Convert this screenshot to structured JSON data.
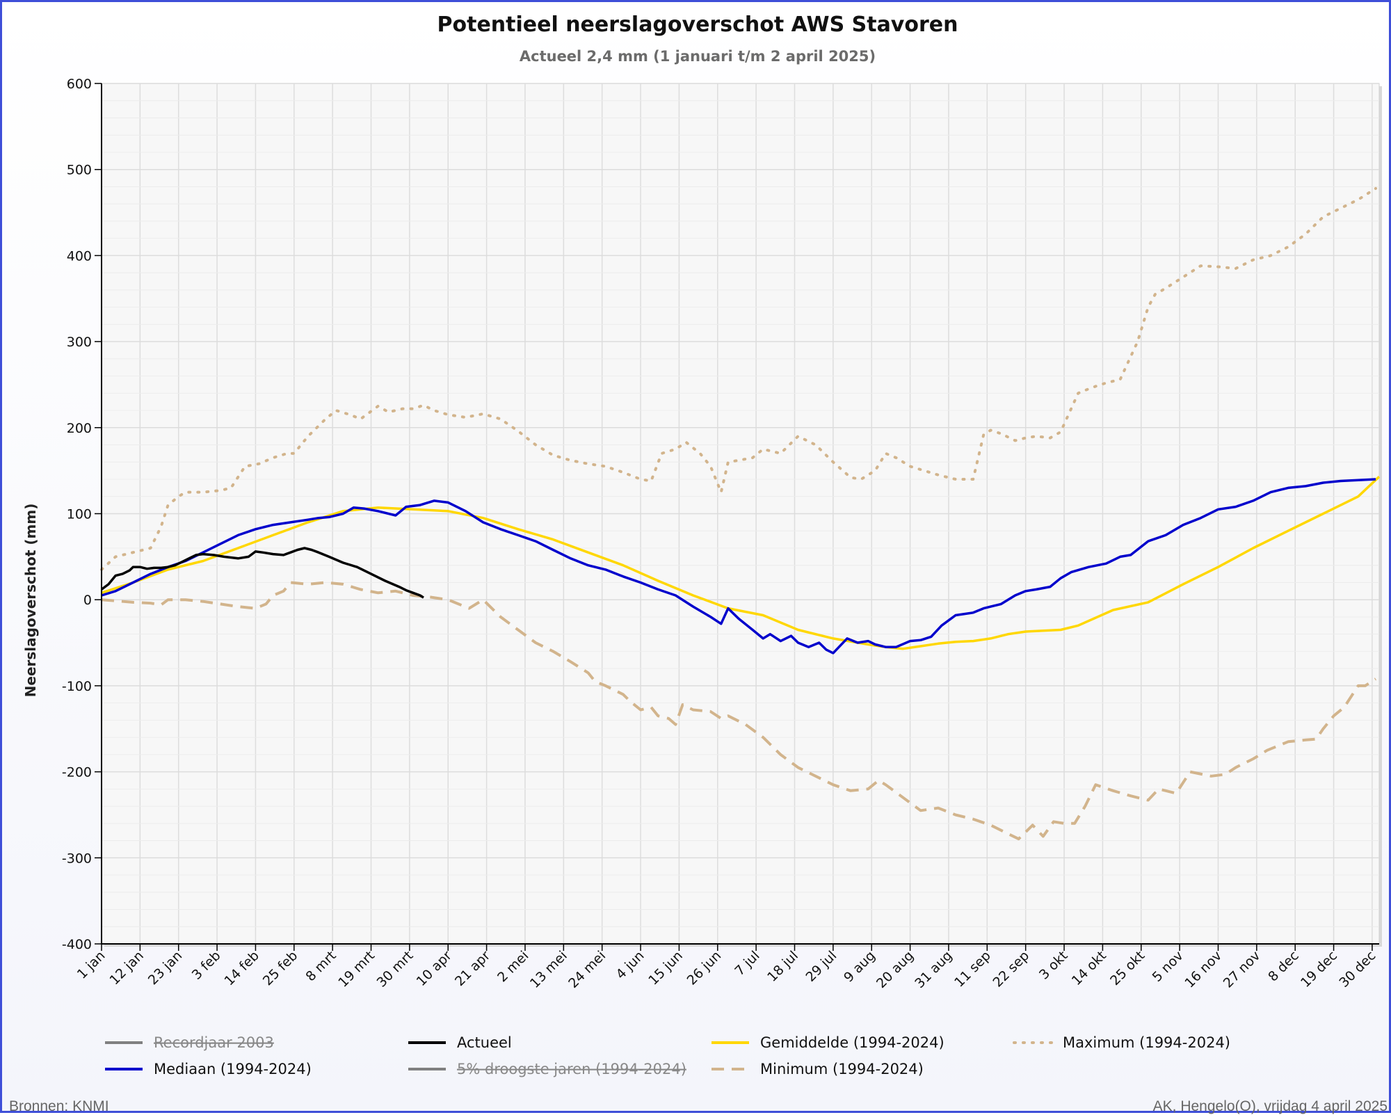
{
  "title": "Potentieel neerslagoverschot AWS Stavoren",
  "subtitle": "Actueel 2,4 mm (1 januari t/m 2 april 2025)",
  "footer_left": "Bronnen: KNMI",
  "footer_right": "AK, Hengelo(O), vrijdag 4 april 2025",
  "chart_data": {
    "type": "line",
    "ylabel": "Neerslagoverschot (mm)",
    "xlabel": "",
    "ylim": [
      -400,
      600
    ],
    "yticks": [
      600,
      500,
      400,
      300,
      200,
      100,
      0,
      -100,
      -200,
      -300,
      -400
    ],
    "x_unit": "day of year",
    "xlim": [
      1,
      366
    ],
    "grid": true,
    "legend_position": "bottom",
    "x_tick_labels": [
      {
        "day": 1,
        "label": "1 jan"
      },
      {
        "day": 12,
        "label": "12 jan"
      },
      {
        "day": 23,
        "label": "23 jan"
      },
      {
        "day": 34,
        "label": "3 feb"
      },
      {
        "day": 45,
        "label": "14 feb"
      },
      {
        "day": 56,
        "label": "25 feb"
      },
      {
        "day": 67,
        "label": "8 mrt"
      },
      {
        "day": 78,
        "label": "19 mrt"
      },
      {
        "day": 89,
        "label": "30 mrt"
      },
      {
        "day": 100,
        "label": "10 apr"
      },
      {
        "day": 111,
        "label": "21 apr"
      },
      {
        "day": 122,
        "label": "2 mei"
      },
      {
        "day": 133,
        "label": "13 mei"
      },
      {
        "day": 144,
        "label": "24 mei"
      },
      {
        "day": 155,
        "label": "4 jun"
      },
      {
        "day": 166,
        "label": "15 jun"
      },
      {
        "day": 177,
        "label": "26 jun"
      },
      {
        "day": 188,
        "label": "7 jul"
      },
      {
        "day": 199,
        "label": "18 jul"
      },
      {
        "day": 210,
        "label": "29 jul"
      },
      {
        "day": 221,
        "label": "9 aug"
      },
      {
        "day": 232,
        "label": "20 aug"
      },
      {
        "day": 243,
        "label": "31 aug"
      },
      {
        "day": 254,
        "label": "11 sep"
      },
      {
        "day": 265,
        "label": "22 sep"
      },
      {
        "day": 276,
        "label": "3 okt"
      },
      {
        "day": 287,
        "label": "14 okt"
      },
      {
        "day": 298,
        "label": "25 okt"
      },
      {
        "day": 309,
        "label": "5 nov"
      },
      {
        "day": 320,
        "label": "16 nov"
      },
      {
        "day": 331,
        "label": "27 nov"
      },
      {
        "day": 342,
        "label": "8 dec"
      },
      {
        "day": 353,
        "label": "19 dec"
      },
      {
        "day": 364,
        "label": "30 dec"
      }
    ],
    "legend": [
      {
        "name": "Recordjaar 2003",
        "color": "#808080",
        "style": "solid",
        "disabled": true
      },
      {
        "name": "Actueel",
        "color": "#000000",
        "style": "solid",
        "disabled": false
      },
      {
        "name": "Gemiddelde (1994-2024)",
        "color": "#ffd700",
        "style": "solid",
        "disabled": false
      },
      {
        "name": "Maximum (1994-2024)",
        "color": "#d2b48c",
        "style": "dotted",
        "disabled": false
      },
      {
        "name": "Mediaan (1994-2024)",
        "color": "#0000cc",
        "style": "solid",
        "disabled": false
      },
      {
        "name": "5% droogste jaren (1994-2024)",
        "color": "#808080",
        "style": "solid",
        "disabled": true
      },
      {
        "name": "Minimum (1994-2024)",
        "color": "#d2b48c",
        "style": "dashed",
        "disabled": false
      }
    ],
    "series": [
      {
        "name": "Maximum (1994-2024)",
        "color": "#d2b48c",
        "style": "dotted",
        "x": [
          1,
          5,
          10,
          15,
          18,
          20,
          23,
          25,
          30,
          35,
          38,
          42,
          46,
          50,
          54,
          56,
          60,
          62,
          65,
          68,
          72,
          75,
          80,
          83,
          87,
          90,
          93,
          96,
          100,
          105,
          110,
          115,
          120,
          125,
          130,
          135,
          140,
          145,
          150,
          155,
          158,
          161,
          165,
          168,
          172,
          175,
          178,
          180,
          183,
          187,
          190,
          195,
          200,
          205,
          210,
          215,
          218,
          222,
          225,
          228,
          232,
          236,
          240,
          245,
          250,
          253,
          255,
          258,
          262,
          265,
          268,
          272,
          275,
          280,
          283,
          285,
          288,
          292,
          297,
          300,
          302,
          305,
          310,
          315,
          320,
          325,
          330,
          335,
          340,
          345,
          350,
          355,
          360,
          365
        ],
        "y": [
          35,
          50,
          55,
          60,
          85,
          110,
          120,
          125,
          125,
          127,
          130,
          155,
          158,
          165,
          170,
          170,
          190,
          198,
          210,
          220,
          215,
          210,
          225,
          218,
          222,
          222,
          226,
          220,
          215,
          212,
          216,
          210,
          196,
          180,
          168,
          162,
          158,
          155,
          148,
          140,
          138,
          170,
          175,
          183,
          170,
          155,
          125,
          160,
          162,
          165,
          175,
          170,
          190,
          180,
          160,
          142,
          140,
          150,
          170,
          165,
          155,
          150,
          145,
          140,
          140,
          192,
          197,
          193,
          185,
          188,
          190,
          188,
          195,
          240,
          245,
          248,
          252,
          256,
          300,
          340,
          355,
          362,
          375,
          388,
          387,
          385,
          395,
          400,
          410,
          425,
          445,
          455,
          465,
          478
        ]
      },
      {
        "name": "Minimum (1994-2024)",
        "color": "#d2b48c",
        "style": "dashed",
        "x": [
          1,
          10,
          15,
          18,
          20,
          25,
          30,
          35,
          40,
          45,
          48,
          50,
          53,
          55,
          60,
          65,
          70,
          75,
          80,
          85,
          90,
          95,
          100,
          103,
          106,
          110,
          115,
          120,
          125,
          130,
          135,
          140,
          142,
          145,
          150,
          152,
          155,
          158,
          160,
          163,
          165,
          167,
          170,
          175,
          178,
          180,
          185,
          190,
          195,
          200,
          205,
          210,
          215,
          220,
          223,
          225,
          230,
          235,
          240,
          245,
          250,
          255,
          260,
          263,
          265,
          267,
          270,
          273,
          276,
          279,
          282,
          285,
          290,
          295,
          300,
          303,
          308,
          312,
          318,
          322,
          325,
          330,
          334,
          340,
          345,
          348,
          350,
          353,
          356,
          360,
          362,
          365
        ],
        "y": [
          0,
          -3,
          -4,
          -6,
          0,
          0,
          -2,
          -5,
          -8,
          -10,
          -5,
          5,
          10,
          20,
          18,
          20,
          18,
          12,
          8,
          10,
          5,
          3,
          0,
          -5,
          -10,
          0,
          -20,
          -35,
          -50,
          -60,
          -72,
          -85,
          -95,
          -100,
          -110,
          -118,
          -128,
          -125,
          -135,
          -138,
          -145,
          -122,
          -128,
          -130,
          -138,
          -135,
          -145,
          -160,
          -180,
          -195,
          -205,
          -215,
          -222,
          -220,
          -210,
          -215,
          -230,
          -245,
          -242,
          -250,
          -255,
          -262,
          -272,
          -278,
          -270,
          -262,
          -275,
          -258,
          -260,
          -260,
          -240,
          -215,
          -222,
          -228,
          -233,
          -220,
          -225,
          -200,
          -205,
          -203,
          -195,
          -185,
          -175,
          -165,
          -163,
          -162,
          -150,
          -135,
          -125,
          -100,
          -100,
          -92
        ]
      },
      {
        "name": "Gemiddelde (1994-2024)",
        "color": "#ffd700",
        "style": "solid",
        "x": [
          1,
          10,
          20,
          30,
          40,
          50,
          60,
          70,
          80,
          90,
          100,
          110,
          120,
          130,
          140,
          150,
          160,
          170,
          180,
          190,
          200,
          210,
          220,
          225,
          230,
          235,
          240,
          245,
          250,
          255,
          260,
          265,
          270,
          275,
          280,
          290,
          300,
          310,
          320,
          330,
          340,
          350,
          360,
          366
        ],
        "y": [
          8,
          20,
          35,
          45,
          60,
          75,
          90,
          103,
          107,
          105,
          103,
          95,
          82,
          70,
          55,
          40,
          22,
          5,
          -10,
          -18,
          -35,
          -45,
          -52,
          -55,
          -57,
          -54,
          -51,
          -49,
          -48,
          -45,
          -40,
          -37,
          -36,
          -35,
          -30,
          -12,
          -3,
          18,
          38,
          60,
          80,
          100,
          120,
          143
        ]
      },
      {
        "name": "Mediaan (1994-2024)",
        "color": "#0000cc",
        "style": "solid",
        "x": [
          1,
          5,
          10,
          15,
          20,
          25,
          30,
          35,
          40,
          45,
          50,
          55,
          60,
          63,
          66,
          70,
          73,
          76,
          80,
          85,
          88,
          92,
          96,
          100,
          105,
          110,
          115,
          120,
          125,
          130,
          135,
          140,
          145,
          150,
          155,
          160,
          165,
          170,
          175,
          178,
          180,
          183,
          187,
          190,
          192,
          195,
          198,
          200,
          203,
          206,
          208,
          210,
          214,
          217,
          220,
          222,
          225,
          228,
          232,
          235,
          238,
          241,
          245,
          250,
          253,
          255,
          258,
          262,
          265,
          268,
          272,
          275,
          278,
          283,
          288,
          292,
          295,
          300,
          305,
          310,
          315,
          320,
          325,
          330,
          335,
          340,
          345,
          350,
          355,
          360,
          365
        ],
        "y": [
          5,
          10,
          20,
          30,
          38,
          45,
          55,
          65,
          75,
          82,
          87,
          90,
          93,
          95,
          96,
          100,
          107,
          106,
          103,
          98,
          108,
          110,
          115,
          113,
          103,
          90,
          82,
          75,
          68,
          58,
          48,
          40,
          35,
          27,
          20,
          12,
          5,
          -8,
          -20,
          -28,
          -10,
          -22,
          -35,
          -45,
          -40,
          -48,
          -42,
          -50,
          -55,
          -50,
          -58,
          -62,
          -45,
          -50,
          -48,
          -52,
          -55,
          -55,
          -48,
          -47,
          -43,
          -30,
          -18,
          -15,
          -10,
          -8,
          -5,
          5,
          10,
          12,
          15,
          25,
          32,
          38,
          42,
          50,
          52,
          68,
          75,
          87,
          95,
          105,
          108,
          115,
          125,
          130,
          132,
          136,
          138,
          139,
          140
        ]
      },
      {
        "name": "Actueel",
        "color": "#000000",
        "style": "solid",
        "x": [
          1,
          3,
          5,
          7,
          9,
          10,
          12,
          14,
          16,
          18,
          20,
          22,
          24,
          26,
          28,
          30,
          33,
          36,
          40,
          43,
          45,
          47,
          50,
          53,
          55,
          57,
          59,
          61,
          63,
          66,
          70,
          74,
          78,
          82,
          86,
          88,
          90,
          92,
          93
        ],
        "y": [
          12,
          18,
          28,
          30,
          34,
          38,
          38,
          36,
          37,
          37,
          38,
          40,
          44,
          48,
          52,
          53,
          52,
          50,
          48,
          50,
          56,
          55,
          53,
          52,
          55,
          58,
          60,
          58,
          55,
          50,
          43,
          38,
          30,
          22,
          15,
          11,
          8,
          5,
          2.4
        ]
      }
    ]
  }
}
